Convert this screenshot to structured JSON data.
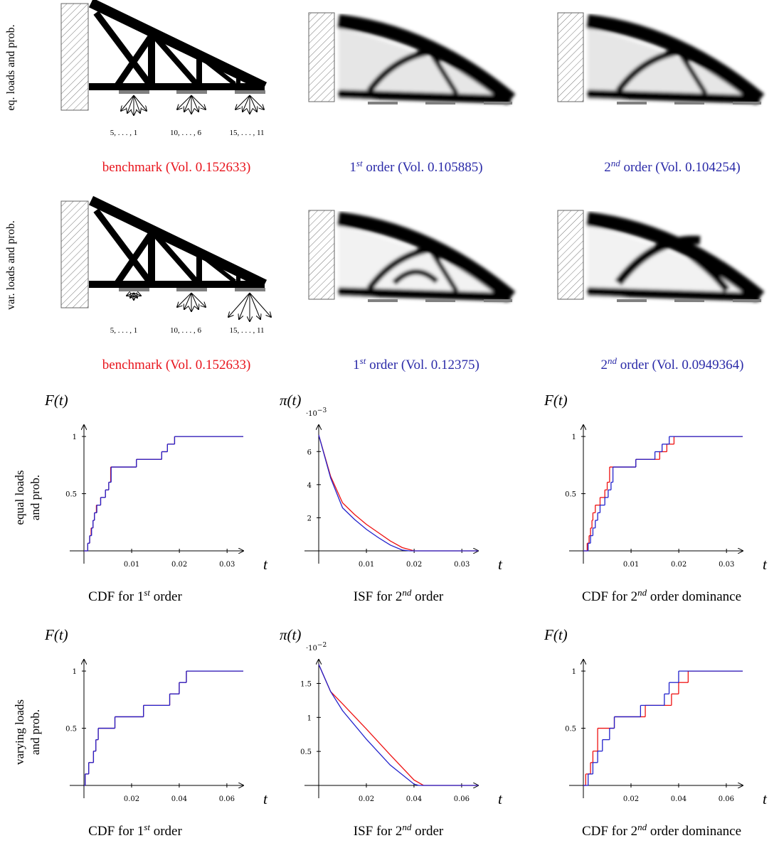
{
  "topology_rows": [
    {
      "label": "eq. loads and prob.",
      "load_labels": [
        "5, . . . , 1",
        "10, . . . , 6",
        "15, . . . , 11"
      ],
      "captions": [
        {
          "parts": [
            "benchmark (Vol. 0.152633)"
          ],
          "color": "#e8141c"
        },
        {
          "parts": [
            "1",
            "st",
            " order (Vol. 0.105885)"
          ],
          "color": "#2a2aa8"
        },
        {
          "parts": [
            "2",
            "nd",
            " order (Vol. 0.104254)"
          ],
          "color": "#2a2aa8"
        }
      ]
    },
    {
      "label": "var. loads and prob.",
      "load_labels": [
        "5, . . . , 1",
        "10, . . . , 6",
        "15, . . . , 11"
      ],
      "captions": [
        {
          "parts": [
            "benchmark (Vol. 0.152633)"
          ],
          "color": "#e8141c"
        },
        {
          "parts": [
            "1",
            "st",
            " order (Vol. 0.12375)"
          ],
          "color": "#2a2aa8"
        },
        {
          "parts": [
            "2",
            "nd",
            " order (Vol. 0.0949364)"
          ],
          "color": "#2a2aa8"
        }
      ]
    }
  ],
  "chart_row_labels": [
    [
      "equal loads",
      "and prob."
    ],
    [
      "varying loads",
      "and prob."
    ]
  ],
  "chart_data": [
    {
      "type": "line",
      "step": true,
      "ylabel": "F(t)",
      "xlabel": "t",
      "caption": [
        "CDF for 1",
        "st",
        " order"
      ],
      "xlim": [
        0,
        0.0334
      ],
      "xticks": [
        0.01,
        0.02,
        0.03
      ],
      "ylim": [
        0,
        1.1
      ],
      "yticks": [
        0.5,
        1
      ],
      "series": [
        {
          "color": "#ee1111",
          "x": [
            0,
            0.0008,
            0.0012,
            0.0015,
            0.0019,
            0.0022,
            0.0026,
            0.0035,
            0.0045,
            0.0052,
            0.0056,
            0.011,
            0.0163,
            0.0175,
            0.019
          ],
          "values": [
            0,
            0.067,
            0.133,
            0.2,
            0.267,
            0.333,
            0.4,
            0.467,
            0.533,
            0.6,
            0.733,
            0.8,
            0.867,
            0.933,
            1
          ]
        },
        {
          "color": "#2222cc",
          "x": [
            0,
            0.0008,
            0.0012,
            0.0016,
            0.0019,
            0.0022,
            0.0027,
            0.0035,
            0.0045,
            0.0052,
            0.0057,
            0.011,
            0.0163,
            0.0175,
            0.019
          ],
          "values": [
            0,
            0.067,
            0.133,
            0.2,
            0.267,
            0.333,
            0.4,
            0.467,
            0.533,
            0.6,
            0.733,
            0.8,
            0.867,
            0.933,
            1
          ]
        }
      ]
    },
    {
      "type": "line",
      "step": false,
      "ylabel": "π(t)",
      "xlabel": "t",
      "caption": [
        "ISF for 2",
        "nd",
        " order"
      ],
      "scale_label": [
        "·10",
        "−3"
      ],
      "xlim": [
        0,
        0.0334
      ],
      "xticks": [
        0.01,
        0.02,
        0.03
      ],
      "ylim": [
        0,
        7.6
      ],
      "yticks": [
        2,
        4,
        6
      ],
      "series": [
        {
          "color": "#ee1111",
          "x": [
            0,
            0.0025,
            0.005,
            0.0075,
            0.01,
            0.0125,
            0.015,
            0.0175,
            0.02,
            0.0334
          ],
          "values": [
            7,
            4.5,
            2.9,
            2.2,
            1.6,
            1.1,
            0.6,
            0.2,
            0,
            0
          ]
        },
        {
          "color": "#2222cc",
          "x": [
            0,
            0.0025,
            0.005,
            0.0075,
            0.01,
            0.0125,
            0.015,
            0.0175,
            0.019,
            0.0334
          ],
          "values": [
            7,
            4.4,
            2.6,
            1.9,
            1.3,
            0.8,
            0.35,
            0.05,
            0,
            0
          ]
        }
      ]
    },
    {
      "type": "line",
      "step": true,
      "ylabel": "F(t)",
      "xlabel": "t",
      "caption": [
        "CDF for 2",
        "nd",
        " order dominance"
      ],
      "xlim": [
        0,
        0.0334
      ],
      "xticks": [
        0.01,
        0.02,
        0.03
      ],
      "ylim": [
        0,
        1.1
      ],
      "yticks": [
        0.5,
        1
      ],
      "series": [
        {
          "color": "#ee1111",
          "x": [
            0,
            0.0008,
            0.0012,
            0.0015,
            0.0018,
            0.002,
            0.0025,
            0.0035,
            0.0045,
            0.005,
            0.0055,
            0.011,
            0.016,
            0.0175,
            0.019
          ],
          "values": [
            0,
            0.067,
            0.133,
            0.2,
            0.267,
            0.333,
            0.4,
            0.467,
            0.533,
            0.6,
            0.733,
            0.8,
            0.867,
            0.933,
            1
          ]
        },
        {
          "color": "#2222cc",
          "x": [
            0,
            0.001,
            0.0015,
            0.002,
            0.0025,
            0.003,
            0.0035,
            0.0045,
            0.0052,
            0.0058,
            0.0062,
            0.011,
            0.015,
            0.0165,
            0.018
          ],
          "values": [
            0,
            0.067,
            0.133,
            0.2,
            0.267,
            0.333,
            0.4,
            0.467,
            0.533,
            0.6,
            0.733,
            0.8,
            0.867,
            0.933,
            1
          ]
        }
      ]
    },
    {
      "type": "line",
      "step": true,
      "ylabel": "F(t)",
      "xlabel": "t",
      "caption": [
        "CDF for 1",
        "st",
        " order"
      ],
      "xlim": [
        0,
        0.0669
      ],
      "xticks": [
        0.02,
        0.04,
        0.06
      ],
      "ylim": [
        0,
        1.1
      ],
      "yticks": [
        0.5,
        1
      ],
      "series": [
        {
          "color": "#ee1111",
          "x": [
            0,
            0.0005,
            0.002,
            0.004,
            0.005,
            0.006,
            0.013,
            0.025,
            0.036,
            0.04,
            0.043
          ],
          "values": [
            0,
            0.1,
            0.2,
            0.3,
            0.4,
            0.5,
            0.6,
            0.7,
            0.8,
            0.9,
            1
          ]
        },
        {
          "color": "#2222cc",
          "x": [
            0,
            0.0005,
            0.002,
            0.004,
            0.005,
            0.006,
            0.013,
            0.025,
            0.036,
            0.04,
            0.043
          ],
          "values": [
            0,
            0.1,
            0.2,
            0.3,
            0.4,
            0.5,
            0.6,
            0.7,
            0.8,
            0.9,
            1
          ]
        }
      ]
    },
    {
      "type": "line",
      "step": false,
      "ylabel": "π(t)",
      "xlabel": "t",
      "caption": [
        "ISF for 2",
        "nd",
        " order"
      ],
      "scale_label": [
        "·10",
        "−2"
      ],
      "xlim": [
        0,
        0.0669
      ],
      "xticks": [
        0.02,
        0.04,
        0.06
      ],
      "ylim": [
        0,
        1.85
      ],
      "yticks": [
        0.5,
        1,
        1.5
      ],
      "series": [
        {
          "color": "#ee1111",
          "x": [
            0,
            0.005,
            0.01,
            0.02,
            0.03,
            0.04,
            0.044,
            0.0669
          ],
          "values": [
            1.78,
            1.38,
            1.2,
            0.83,
            0.45,
            0.08,
            0,
            0
          ]
        },
        {
          "color": "#2222cc",
          "x": [
            0,
            0.005,
            0.01,
            0.02,
            0.03,
            0.04,
            0.042,
            0.0669
          ],
          "values": [
            1.78,
            1.38,
            1.1,
            0.68,
            0.3,
            0.02,
            0,
            0
          ]
        }
      ]
    },
    {
      "type": "line",
      "step": true,
      "ylabel": "F(t)",
      "xlabel": "t",
      "caption": [
        "CDF for 2",
        "nd",
        " order dominance"
      ],
      "xlim": [
        0,
        0.0669
      ],
      "xticks": [
        0.02,
        0.04,
        0.06
      ],
      "ylim": [
        0,
        1.1
      ],
      "yticks": [
        0.5,
        1
      ],
      "series": [
        {
          "color": "#ee1111",
          "x": [
            0,
            0.001,
            0.003,
            0.004,
            0.006,
            0.013,
            0.026,
            0.037,
            0.04,
            0.044
          ],
          "values": [
            0,
            0.1,
            0.2,
            0.3,
            0.5,
            0.6,
            0.7,
            0.8,
            0.9,
            1
          ]
        },
        {
          "color": "#2222cc",
          "x": [
            0,
            0.002,
            0.004,
            0.006,
            0.008,
            0.011,
            0.013,
            0.024,
            0.034,
            0.036,
            0.04
          ],
          "values": [
            0,
            0.1,
            0.2,
            0.3,
            0.4,
            0.5,
            0.6,
            0.7,
            0.8,
            0.9,
            1
          ]
        }
      ]
    }
  ]
}
